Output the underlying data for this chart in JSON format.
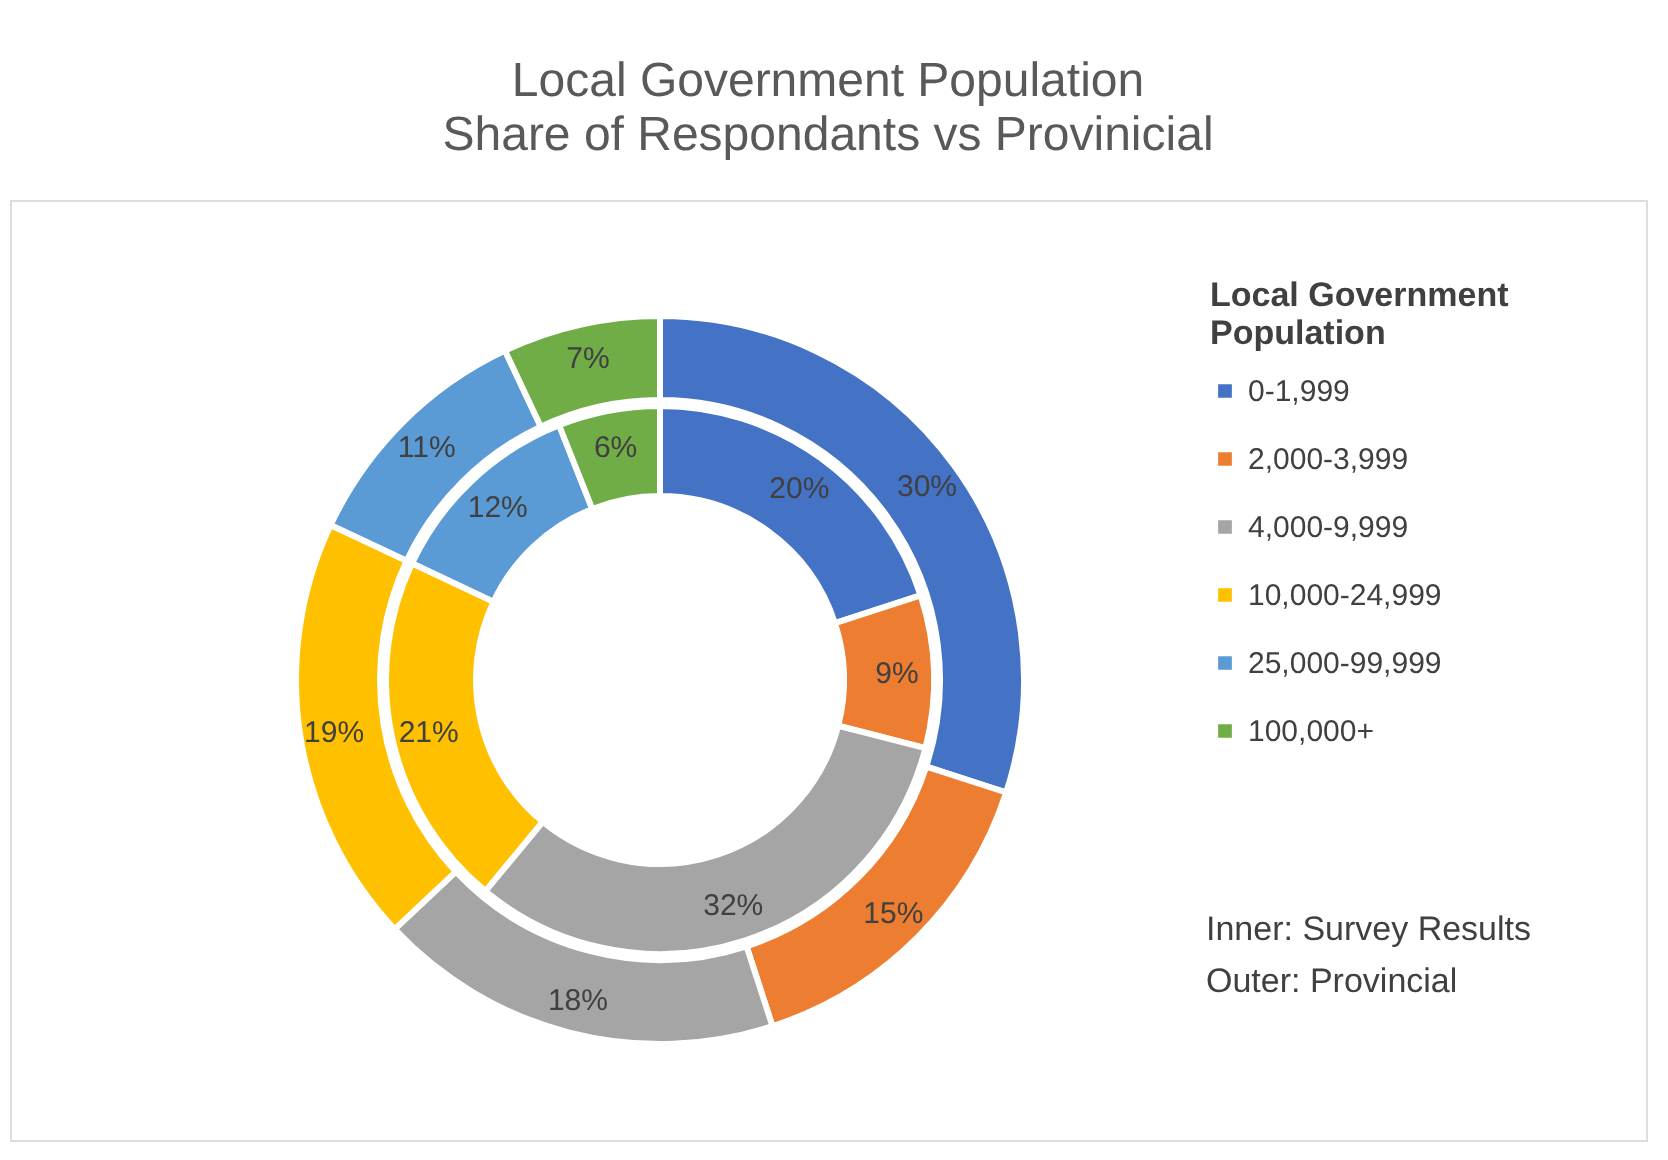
{
  "chart_data": {
    "type": "donut",
    "title": "Local Government Population",
    "subtitle": "Share of Respondants vs Provinicial",
    "legend_title": "Local Government Population",
    "legend": "right",
    "categories": [
      "0-1,999",
      "2,000-3,999",
      "4,000-9,999",
      "10,000-24,999",
      "25,000-99,999",
      "100,000+"
    ],
    "colors": [
      "#4472c4",
      "#ed7d31",
      "#a5a5a5",
      "#ffc000",
      "#5b9bd5",
      "#70ad47"
    ],
    "series": [
      {
        "values": [
          20,
          9,
          32,
          21,
          12,
          6
        ],
        "value_labels": [
          "20%",
          "9%",
          "32%",
          "21%",
          "12%",
          "6%"
        ]
      },
      {
        "values": [
          30,
          15,
          18,
          19,
          11,
          7
        ],
        "value_labels": [
          "30%",
          "15%",
          "18%",
          "19%",
          "11%",
          "7%"
        ]
      }
    ],
    "annotations": [
      "Inner: Survey Results",
      "Outer: Provincial"
    ]
  }
}
